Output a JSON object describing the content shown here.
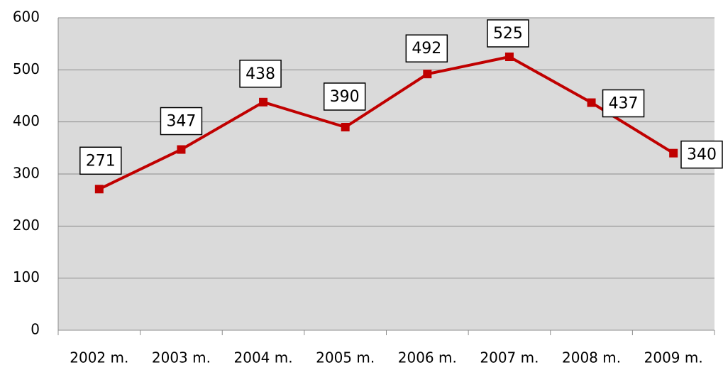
{
  "chart_data": {
    "type": "line",
    "categories": [
      "2002 m.",
      "2003 m.",
      "2004 m.",
      "2005 m.",
      "2006 m.",
      "2007 m.",
      "2008 m.",
      "2009 m."
    ],
    "values": [
      271,
      347,
      438,
      390,
      492,
      525,
      437,
      340
    ],
    "color": "#c00000",
    "ylim": [
      0,
      600
    ],
    "yticks": [
      0,
      100,
      200,
      300,
      400,
      500,
      600
    ],
    "grid": true,
    "data_labels": true
  }
}
